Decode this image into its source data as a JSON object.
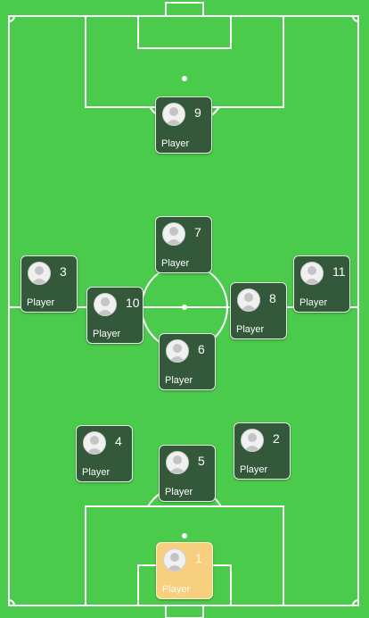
{
  "pitch": {
    "grass_color": "#4bcb4b",
    "line_color": "#ffffff"
  },
  "avatar_icon": "user-silhouette-icon",
  "colors": {
    "outfield_card": "#33583a",
    "goalkeeper_card": "#f7cf7f"
  },
  "players": [
    {
      "number": "9",
      "label": "Player"
    },
    {
      "number": "7",
      "label": "Player"
    },
    {
      "number": "3",
      "label": "Player"
    },
    {
      "number": "11",
      "label": "Player"
    },
    {
      "number": "10",
      "label": "Player"
    },
    {
      "number": "8",
      "label": "Player"
    },
    {
      "number": "6",
      "label": "Player"
    },
    {
      "number": "4",
      "label": "Player"
    },
    {
      "number": "2",
      "label": "Player"
    },
    {
      "number": "5",
      "label": "Player"
    },
    {
      "number": "1",
      "label": "Player"
    }
  ]
}
